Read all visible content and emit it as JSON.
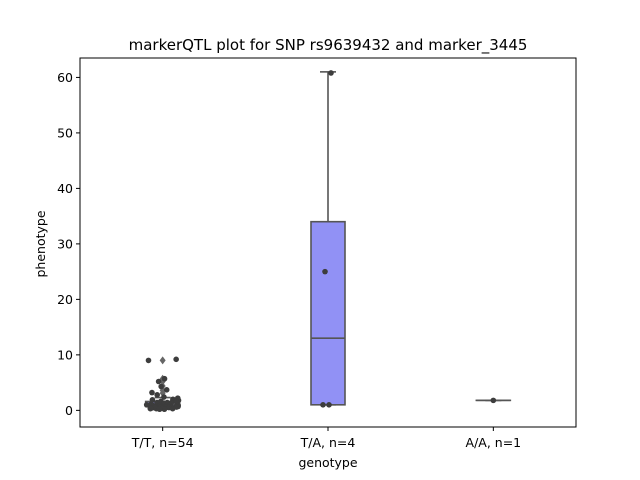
{
  "chart_data": {
    "type": "box",
    "title": "markerQTL plot for SNP rs9639432 and marker_3445",
    "xlabel": "genotype",
    "ylabel": "phenotype",
    "ylim": [
      -3,
      63.5
    ],
    "yticks": [
      0,
      10,
      20,
      30,
      40,
      50,
      60
    ],
    "ytick_labels": [
      "0",
      "10",
      "20",
      "30",
      "40",
      "50",
      "60"
    ],
    "categories": [
      "T/T, n=54",
      "T/A, n=4",
      "A/A, n=1"
    ],
    "box_color": "#9191f5",
    "edge_color": "#555555",
    "point_color": "#3d3d3d",
    "boxes": [
      {
        "category": "T/T, n=54",
        "q1": 0.7,
        "median": 1.1,
        "q3": 1.6,
        "whislo": 0.2,
        "whishi": 2.3,
        "outliers": [
          3.1,
          3.6,
          4.4,
          5.2,
          5.7,
          9.0
        ]
      },
      {
        "category": "T/A, n=4",
        "q1": 1.0,
        "median": 13.0,
        "q3": 34.0,
        "whislo": 1.0,
        "whishi": 61.0,
        "outliers": []
      },
      {
        "category": "A/A, n=1",
        "q1": 1.8,
        "median": 1.8,
        "q3": 1.8,
        "whislo": 1.8,
        "whishi": 1.8,
        "outliers": []
      }
    ],
    "points": [
      {
        "category": "T/T, n=54",
        "values": [
          9.2,
          9.0,
          5.7,
          5.2,
          4.3,
          3.7,
          3.2,
          2.8,
          2.4,
          2.2,
          2.0,
          1.9,
          1.8,
          1.7,
          1.6,
          1.6,
          1.5,
          1.4,
          1.4,
          1.3,
          1.3,
          1.2,
          1.2,
          1.1,
          1.1,
          1.0,
          1.0,
          1.0,
          0.9,
          0.9,
          0.9,
          0.8,
          0.8,
          0.8,
          0.7,
          0.7,
          0.7,
          0.7,
          0.6,
          0.6,
          0.6,
          0.6,
          0.5,
          0.5,
          0.5,
          0.5,
          0.4,
          0.4,
          0.4,
          0.3,
          0.3,
          0.3,
          0.2,
          0.2
        ]
      },
      {
        "category": "T/A, n=4",
        "values": [
          60.8,
          25.0,
          1.0,
          1.0
        ]
      },
      {
        "category": "A/A, n=1",
        "values": [
          1.8
        ]
      }
    ]
  }
}
